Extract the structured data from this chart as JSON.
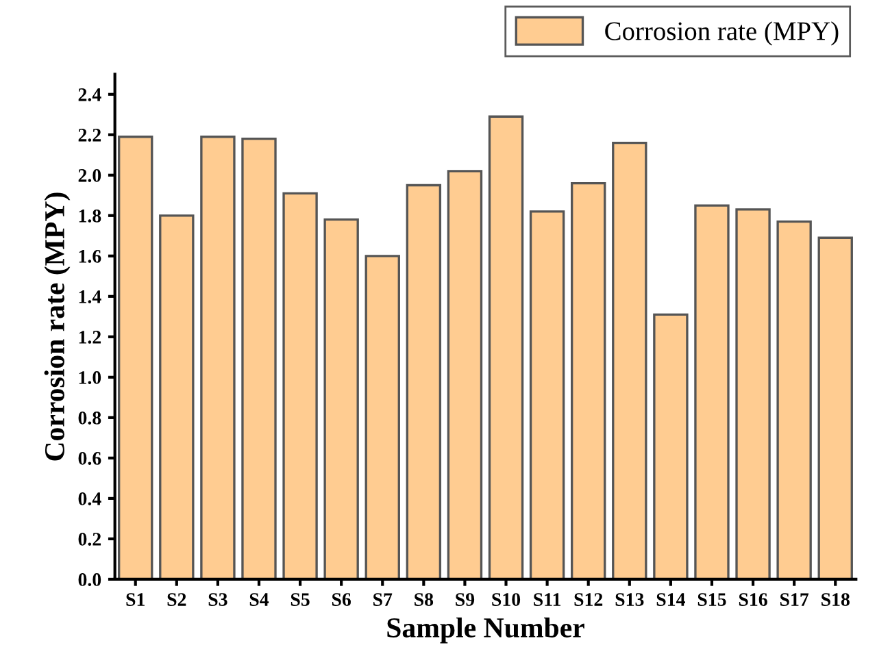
{
  "chart_data": {
    "type": "bar",
    "xlabel": "Sample Number",
    "ylabel": "Corrosion rate (MPY)",
    "categories": [
      "S1",
      "S2",
      "S3",
      "S4",
      "S5",
      "S6",
      "S7",
      "S8",
      "S9",
      "S10",
      "S11",
      "S12",
      "S13",
      "S14",
      "S15",
      "S16",
      "S17",
      "S18"
    ],
    "series": [
      {
        "name": "Corrosion rate (MPY)",
        "color": "#ffcc91",
        "values": [
          2.19,
          1.8,
          2.19,
          2.18,
          1.91,
          1.78,
          1.6,
          1.95,
          2.02,
          2.29,
          1.82,
          1.96,
          2.16,
          1.31,
          1.85,
          1.83,
          1.77,
          1.69
        ]
      }
    ],
    "ylim": [
      0,
      2.5
    ],
    "yticks": [
      {
        "value": 0,
        "label": "0.0"
      },
      {
        "value": 0.2,
        "label": "0.2"
      },
      {
        "value": 0.4,
        "label": "0.4"
      },
      {
        "value": 0.6,
        "label": "0.6"
      },
      {
        "value": 0.8,
        "label": "0.8"
      },
      {
        "value": 1,
        "label": "1.0"
      },
      {
        "value": 1.2,
        "label": "1.2"
      },
      {
        "value": 1.4,
        "label": "1.4"
      },
      {
        "value": 1.6,
        "label": "1.6"
      },
      {
        "value": 1.8,
        "label": "1.8"
      },
      {
        "value": 2,
        "label": "2.0"
      },
      {
        "value": 2.2,
        "label": "2.2"
      },
      {
        "value": 2.4,
        "label": "2.4"
      }
    ],
    "grid": false,
    "legend": "top right"
  }
}
